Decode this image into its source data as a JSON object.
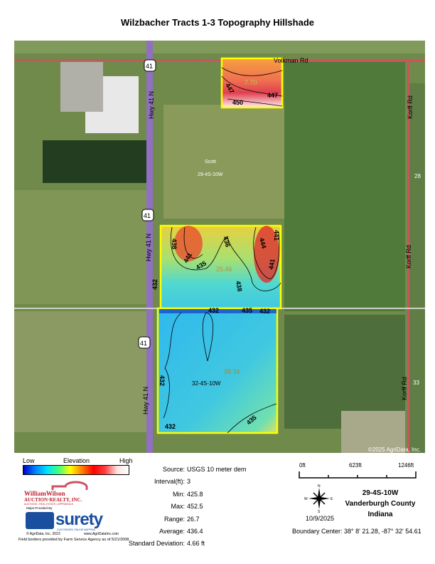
{
  "title": "Wilzbacher Tracts 1-3 Topography Hillshade",
  "map": {
    "roads": {
      "volkman": "Volkman Rd",
      "hwy": "Hwy 41 N",
      "shield": "41",
      "korff": "Korff Rd"
    },
    "section_numbers": [
      "28",
      "33"
    ],
    "labels": {
      "scott": "Scott",
      "sec_top": "29-4S-10W",
      "sec_bottom": "32-4S-10W"
    },
    "tracts": [
      {
        "acres": "7.70",
        "contours": [
          "447",
          "447",
          "450"
        ]
      },
      {
        "acres": "25.46",
        "contours": [
          "438",
          "441",
          "435",
          "436",
          "444",
          "441",
          "438",
          "441"
        ]
      },
      {
        "acres": "38.34",
        "contours": [
          "432",
          "435",
          "432",
          "432",
          "432",
          "432",
          "435"
        ]
      }
    ],
    "copyright": "©2025 AgriData, Inc.",
    "tract_border_color": "#ffff00"
  },
  "legend": {
    "low": "Low",
    "mid": "Elevation",
    "high": "High",
    "colors": [
      "#0000c8",
      "#00e0ff",
      "#ffff00",
      "#ff0000",
      "#ffffff"
    ]
  },
  "stats": [
    {
      "label": "Source:",
      "value": "USGS 10 meter dem"
    },
    {
      "label": "Interval(ft):",
      "value": "3"
    },
    {
      "label": "Min:",
      "value": "425.8"
    },
    {
      "label": "Max:",
      "value": "452.5"
    },
    {
      "label": "Range:",
      "value": "26.7"
    },
    {
      "label": "Average:",
      "value": "436.4"
    },
    {
      "label": "Standard Deviation:",
      "value": "4.66 ft"
    }
  ],
  "scale": {
    "ticks": [
      "0ft",
      "623ft",
      "1246ft"
    ]
  },
  "compass": {
    "n": "N",
    "s": "S",
    "e": "E",
    "w": "W"
  },
  "date": "10/9/2025",
  "location": {
    "section": "29-4S-10W",
    "county": "Vanderburgh County",
    "state": "Indiana"
  },
  "boundary_center": "Boundary Center: 38° 8' 21.28,  -87° 32' 54.61",
  "credits": {
    "logo1_name": "WilliamWilson",
    "logo1_sub": "AUCTION·REALTY, INC.",
    "logo1_tag": "AUCTIONS • REAL ESTATE • APPRAISALS",
    "maps_by": "Maps Provided By",
    "surety": "surety",
    "surety_tag": "CUSTOMIZED ONLINE MAPPING",
    "agridata": "© AgriData, Inc. 2023",
    "url": "www.AgriDataInc.com",
    "fsa": "Field borders provided by Farm Service Agency as of 5/21/2008."
  }
}
